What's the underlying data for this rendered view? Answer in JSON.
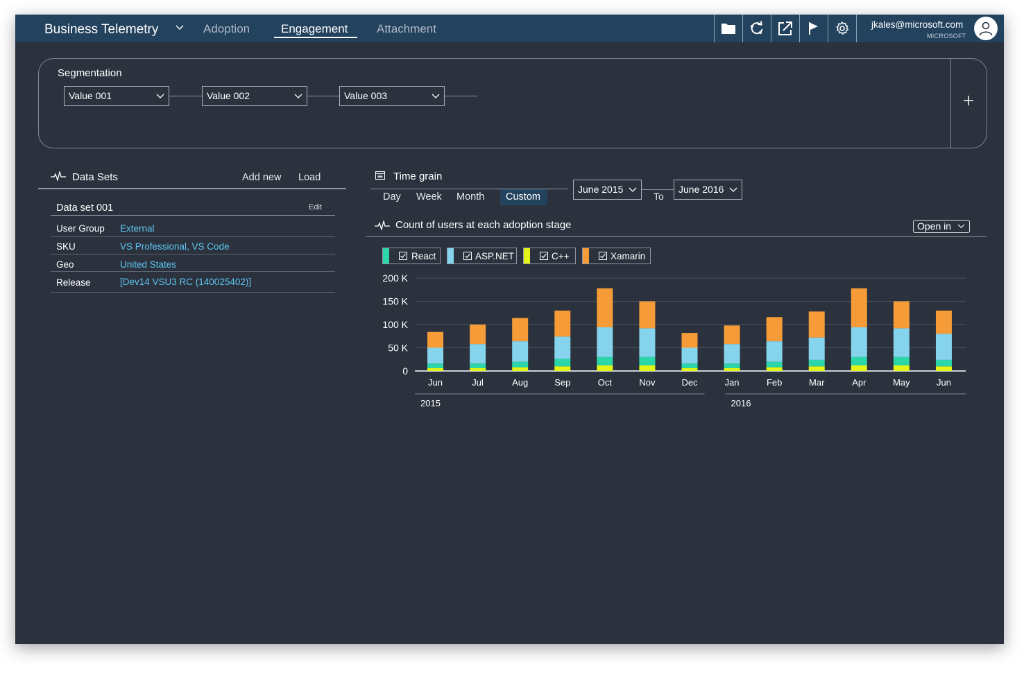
{
  "header": {
    "brand": "Business Telemetry",
    "tabs": [
      {
        "label": "Adoption",
        "active": false
      },
      {
        "label": "Engagement",
        "active": true
      },
      {
        "label": "Attachment",
        "active": false
      }
    ],
    "icons": [
      "folder-icon",
      "refresh-icon",
      "share-icon",
      "flag-icon",
      "settings-icon"
    ],
    "user_email": "jkales@microsoft.com",
    "user_org": "MICROSOFT"
  },
  "segmentation": {
    "title": "Segmentation",
    "values": [
      "Value 001",
      "Value 002",
      "Value 003"
    ],
    "add_icon": "plus-icon"
  },
  "datasets": {
    "title": "Data Sets",
    "add_new": "Add new",
    "load": "Load",
    "set_name": "Data set 001",
    "edit": "Edit",
    "rows": [
      {
        "key": "User Group",
        "value": "External"
      },
      {
        "key": "SKU",
        "value": "VS Professional, VS Code"
      },
      {
        "key": "Geo",
        "value": "United States"
      },
      {
        "key": "Release",
        "value": "[Dev14 VSU3 RC (140025402)]"
      }
    ]
  },
  "time_grain": {
    "title": "Time grain",
    "options": [
      "Day",
      "Week",
      "Month",
      "Custom"
    ],
    "selected": "Custom",
    "from": "June 2015",
    "to_label": "To",
    "to": "June 2016"
  },
  "chart_section": {
    "title": "Count of users at each adoption stage",
    "open_in": "Open in"
  },
  "colors": {
    "React": "#2dd6a8",
    "ASP.NET": "#85d3ec",
    "C++": "#e3f516",
    "Xamarin": "#f59b37",
    "header": "#23425e",
    "background": "#2b323e"
  },
  "chart_data": {
    "type": "bar",
    "stacked": true,
    "categories": [
      "Jun",
      "Jul",
      "Aug",
      "Sep",
      "Oct",
      "Nov",
      "Dec",
      "Jan",
      "Feb",
      "Mar",
      "Apr",
      "May",
      "Jun"
    ],
    "year_groups": [
      {
        "label": "2015",
        "months": [
          "Jun",
          "Jul",
          "Aug",
          "Sep",
          "Oct",
          "Nov",
          "Dec"
        ]
      },
      {
        "label": "2016",
        "months": [
          "Jan",
          "Feb",
          "Mar",
          "Apr",
          "May",
          "Jun"
        ]
      }
    ],
    "series": [
      {
        "name": "C++",
        "color": "#e3f516",
        "values": [
          6,
          6,
          8,
          10,
          12,
          12,
          6,
          6,
          8,
          10,
          12,
          12,
          10
        ]
      },
      {
        "name": "React",
        "color": "#2dd6a8",
        "values": [
          10,
          10,
          12,
          16,
          18,
          18,
          10,
          10,
          12,
          14,
          18,
          18,
          14
        ]
      },
      {
        "name": "ASP.NET",
        "color": "#85d3ec",
        "values": [
          34,
          42,
          44,
          48,
          64,
          62,
          34,
          42,
          44,
          48,
          64,
          62,
          56
        ]
      },
      {
        "name": "Xamarin",
        "color": "#f59b37",
        "values": [
          34,
          42,
          50,
          56,
          84,
          58,
          32,
          40,
          52,
          56,
          84,
          58,
          50
        ]
      }
    ],
    "legend": [
      "React",
      "ASP.NET",
      "C++",
      "Xamarin"
    ],
    "yticks": [
      "200 K",
      "150 K",
      "100 K",
      "50 K",
      "0"
    ],
    "ylim": [
      0,
      200
    ],
    "legend_position": "top-left",
    "grid": true
  }
}
